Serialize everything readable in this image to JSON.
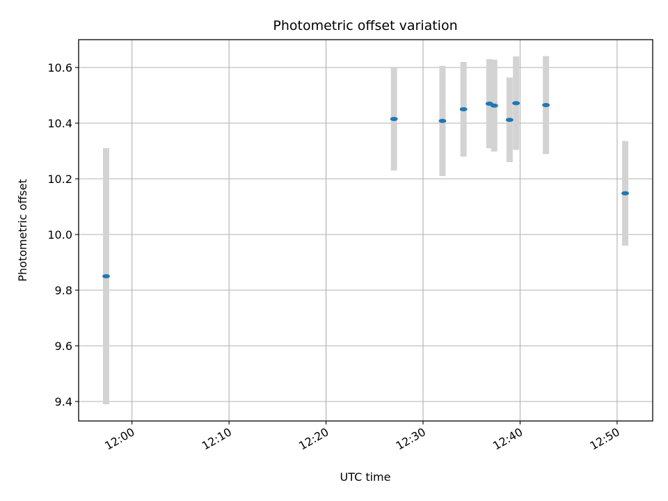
{
  "chart_data": {
    "type": "scatter",
    "title": "Photometric offset variation",
    "xlabel": "UTC time",
    "ylabel": "Photometric offset",
    "xlim": [
      "11:54:30",
      "12:53:40"
    ],
    "ylim": [
      9.33,
      10.7
    ],
    "x_ticks": [
      "12:00",
      "12:10",
      "12:20",
      "12:30",
      "12:40",
      "12:50"
    ],
    "y_ticks": [
      "9.4",
      "9.6",
      "9.8",
      "10.0",
      "10.2",
      "10.4",
      "10.6"
    ],
    "grid": true,
    "marker_color": "#1f77b4",
    "errorbar_color": "#d3d3d3",
    "points": [
      {
        "x": "11:57:20",
        "y": 9.85,
        "err": 0.46
      },
      {
        "x": "12:27:00",
        "y": 10.415,
        "err": 0.185
      },
      {
        "x": "12:32:00",
        "y": 10.408,
        "err": 0.198
      },
      {
        "x": "12:34:10",
        "y": 10.45,
        "err": 0.17
      },
      {
        "x": "12:36:50",
        "y": 10.47,
        "err": 0.16
      },
      {
        "x": "12:37:20",
        "y": 10.463,
        "err": 0.165
      },
      {
        "x": "12:38:55",
        "y": 10.412,
        "err": 0.152
      },
      {
        "x": "12:39:35",
        "y": 10.472,
        "err": 0.168
      },
      {
        "x": "12:42:40",
        "y": 10.465,
        "err": 0.176
      },
      {
        "x": "12:50:50",
        "y": 10.148,
        "err": 0.188
      }
    ]
  }
}
